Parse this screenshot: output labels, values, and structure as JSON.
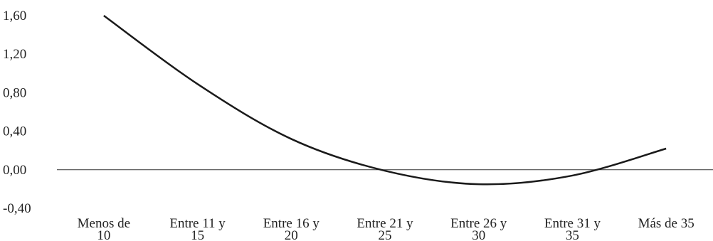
{
  "chart_data": {
    "type": "line",
    "categories": [
      "Menos de 10",
      "Entre 11 y 15",
      "Entre 16 y 20",
      "Entre 21 y 25",
      "Entre 26 y 30",
      "Entre 31 y 35",
      "Más de 35"
    ],
    "values": [
      1.6,
      0.89,
      0.32,
      -0.01,
      -0.15,
      -0.06,
      0.22
    ],
    "color": "#1a1a1a",
    "ylim": [
      -0.4,
      1.6
    ],
    "yticks": [
      {
        "value": 1.6,
        "label": "1,60"
      },
      {
        "value": 1.2,
        "label": "1,20"
      },
      {
        "value": 0.8,
        "label": "0,80"
      },
      {
        "value": 0.4,
        "label": "0,40"
      },
      {
        "value": 0,
        "label": "0,00"
      },
      {
        "value": -0.4,
        "label": "-0,40"
      }
    ],
    "grid": false
  }
}
